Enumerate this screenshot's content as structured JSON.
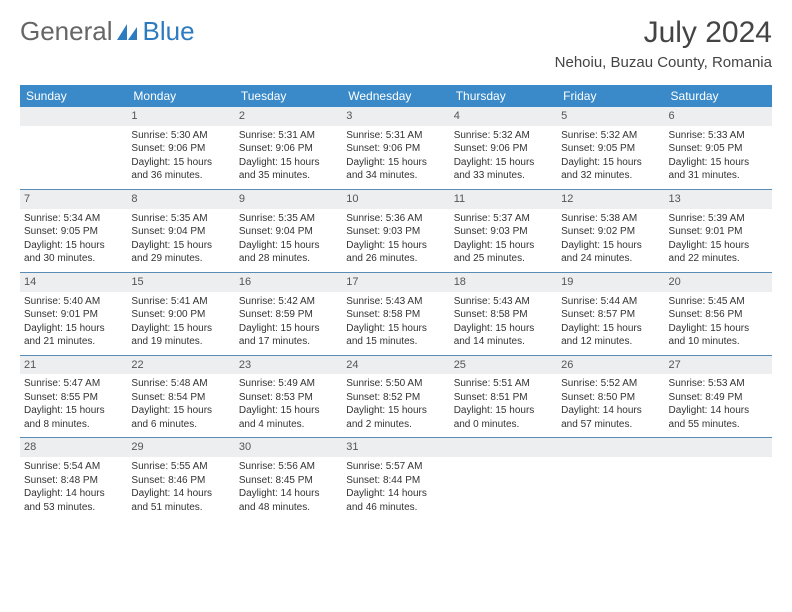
{
  "logo": {
    "part1": "General",
    "part2": "Blue"
  },
  "title": "July 2024",
  "location": "Nehoiu, Buzau County, Romania",
  "colors": {
    "header_bg": "#3a8ac9",
    "header_text": "#ffffff",
    "daynum_bg": "#eceeef",
    "rule": "#5a8db5",
    "logo_blue": "#2e7cc0"
  },
  "dayNames": [
    "Sunday",
    "Monday",
    "Tuesday",
    "Wednesday",
    "Thursday",
    "Friday",
    "Saturday"
  ],
  "weeks": [
    [
      {
        "n": "",
        "sr": "",
        "ss": "",
        "dl": ""
      },
      {
        "n": "1",
        "sr": "Sunrise: 5:30 AM",
        "ss": "Sunset: 9:06 PM",
        "dl": "Daylight: 15 hours and 36 minutes."
      },
      {
        "n": "2",
        "sr": "Sunrise: 5:31 AM",
        "ss": "Sunset: 9:06 PM",
        "dl": "Daylight: 15 hours and 35 minutes."
      },
      {
        "n": "3",
        "sr": "Sunrise: 5:31 AM",
        "ss": "Sunset: 9:06 PM",
        "dl": "Daylight: 15 hours and 34 minutes."
      },
      {
        "n": "4",
        "sr": "Sunrise: 5:32 AM",
        "ss": "Sunset: 9:06 PM",
        "dl": "Daylight: 15 hours and 33 minutes."
      },
      {
        "n": "5",
        "sr": "Sunrise: 5:32 AM",
        "ss": "Sunset: 9:05 PM",
        "dl": "Daylight: 15 hours and 32 minutes."
      },
      {
        "n": "6",
        "sr": "Sunrise: 5:33 AM",
        "ss": "Sunset: 9:05 PM",
        "dl": "Daylight: 15 hours and 31 minutes."
      }
    ],
    [
      {
        "n": "7",
        "sr": "Sunrise: 5:34 AM",
        "ss": "Sunset: 9:05 PM",
        "dl": "Daylight: 15 hours and 30 minutes."
      },
      {
        "n": "8",
        "sr": "Sunrise: 5:35 AM",
        "ss": "Sunset: 9:04 PM",
        "dl": "Daylight: 15 hours and 29 minutes."
      },
      {
        "n": "9",
        "sr": "Sunrise: 5:35 AM",
        "ss": "Sunset: 9:04 PM",
        "dl": "Daylight: 15 hours and 28 minutes."
      },
      {
        "n": "10",
        "sr": "Sunrise: 5:36 AM",
        "ss": "Sunset: 9:03 PM",
        "dl": "Daylight: 15 hours and 26 minutes."
      },
      {
        "n": "11",
        "sr": "Sunrise: 5:37 AM",
        "ss": "Sunset: 9:03 PM",
        "dl": "Daylight: 15 hours and 25 minutes."
      },
      {
        "n": "12",
        "sr": "Sunrise: 5:38 AM",
        "ss": "Sunset: 9:02 PM",
        "dl": "Daylight: 15 hours and 24 minutes."
      },
      {
        "n": "13",
        "sr": "Sunrise: 5:39 AM",
        "ss": "Sunset: 9:01 PM",
        "dl": "Daylight: 15 hours and 22 minutes."
      }
    ],
    [
      {
        "n": "14",
        "sr": "Sunrise: 5:40 AM",
        "ss": "Sunset: 9:01 PM",
        "dl": "Daylight: 15 hours and 21 minutes."
      },
      {
        "n": "15",
        "sr": "Sunrise: 5:41 AM",
        "ss": "Sunset: 9:00 PM",
        "dl": "Daylight: 15 hours and 19 minutes."
      },
      {
        "n": "16",
        "sr": "Sunrise: 5:42 AM",
        "ss": "Sunset: 8:59 PM",
        "dl": "Daylight: 15 hours and 17 minutes."
      },
      {
        "n": "17",
        "sr": "Sunrise: 5:43 AM",
        "ss": "Sunset: 8:58 PM",
        "dl": "Daylight: 15 hours and 15 minutes."
      },
      {
        "n": "18",
        "sr": "Sunrise: 5:43 AM",
        "ss": "Sunset: 8:58 PM",
        "dl": "Daylight: 15 hours and 14 minutes."
      },
      {
        "n": "19",
        "sr": "Sunrise: 5:44 AM",
        "ss": "Sunset: 8:57 PM",
        "dl": "Daylight: 15 hours and 12 minutes."
      },
      {
        "n": "20",
        "sr": "Sunrise: 5:45 AM",
        "ss": "Sunset: 8:56 PM",
        "dl": "Daylight: 15 hours and 10 minutes."
      }
    ],
    [
      {
        "n": "21",
        "sr": "Sunrise: 5:47 AM",
        "ss": "Sunset: 8:55 PM",
        "dl": "Daylight: 15 hours and 8 minutes."
      },
      {
        "n": "22",
        "sr": "Sunrise: 5:48 AM",
        "ss": "Sunset: 8:54 PM",
        "dl": "Daylight: 15 hours and 6 minutes."
      },
      {
        "n": "23",
        "sr": "Sunrise: 5:49 AM",
        "ss": "Sunset: 8:53 PM",
        "dl": "Daylight: 15 hours and 4 minutes."
      },
      {
        "n": "24",
        "sr": "Sunrise: 5:50 AM",
        "ss": "Sunset: 8:52 PM",
        "dl": "Daylight: 15 hours and 2 minutes."
      },
      {
        "n": "25",
        "sr": "Sunrise: 5:51 AM",
        "ss": "Sunset: 8:51 PM",
        "dl": "Daylight: 15 hours and 0 minutes."
      },
      {
        "n": "26",
        "sr": "Sunrise: 5:52 AM",
        "ss": "Sunset: 8:50 PM",
        "dl": "Daylight: 14 hours and 57 minutes."
      },
      {
        "n": "27",
        "sr": "Sunrise: 5:53 AM",
        "ss": "Sunset: 8:49 PM",
        "dl": "Daylight: 14 hours and 55 minutes."
      }
    ],
    [
      {
        "n": "28",
        "sr": "Sunrise: 5:54 AM",
        "ss": "Sunset: 8:48 PM",
        "dl": "Daylight: 14 hours and 53 minutes."
      },
      {
        "n": "29",
        "sr": "Sunrise: 5:55 AM",
        "ss": "Sunset: 8:46 PM",
        "dl": "Daylight: 14 hours and 51 minutes."
      },
      {
        "n": "30",
        "sr": "Sunrise: 5:56 AM",
        "ss": "Sunset: 8:45 PM",
        "dl": "Daylight: 14 hours and 48 minutes."
      },
      {
        "n": "31",
        "sr": "Sunrise: 5:57 AM",
        "ss": "Sunset: 8:44 PM",
        "dl": "Daylight: 14 hours and 46 minutes."
      },
      {
        "n": "",
        "sr": "",
        "ss": "",
        "dl": ""
      },
      {
        "n": "",
        "sr": "",
        "ss": "",
        "dl": ""
      },
      {
        "n": "",
        "sr": "",
        "ss": "",
        "dl": ""
      }
    ]
  ]
}
